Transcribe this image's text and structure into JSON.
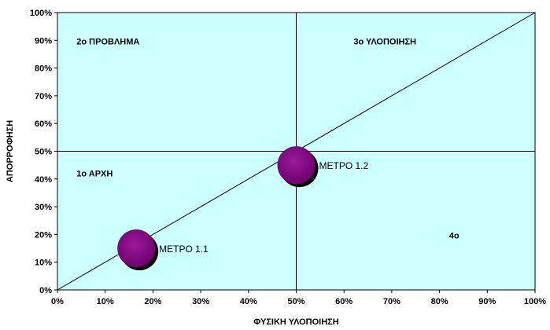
{
  "chart_data": {
    "type": "scatter",
    "subtype": "bubble",
    "title": "",
    "xlabel": "ΦΥΣΙΚΗ ΥΛΟΠΟΙΗΣΗ",
    "ylabel": "ΑΠΟΡΡΟΦΗΣΗ",
    "xlim": [
      0,
      1
    ],
    "ylim": [
      0,
      1
    ],
    "x_ticks": [
      0,
      0.1,
      0.2,
      0.3,
      0.4,
      0.5,
      0.6,
      0.7,
      0.8,
      0.9,
      1.0
    ],
    "x_tick_labels": [
      "0%",
      "10%",
      "20%",
      "30%",
      "40%",
      "50%",
      "60%",
      "70%",
      "80%",
      "90%",
      "100%"
    ],
    "y_ticks": [
      0,
      0.1,
      0.2,
      0.3,
      0.4,
      0.5,
      0.6,
      0.7,
      0.8,
      0.9,
      1.0
    ],
    "y_tick_labels": [
      "0%",
      "10%",
      "20%",
      "30%",
      "40%",
      "50%",
      "60%",
      "70%",
      "80%",
      "90%",
      "100%"
    ],
    "grid": false,
    "background_color": "#ccffff",
    "bubble_color": "#800080",
    "bubble_shadow_color": "#000000",
    "reference_lines": {
      "vertical_x": 0.5,
      "horizontal_y": 0.5,
      "diagonal": [
        [
          0,
          0
        ],
        [
          1,
          1
        ]
      ]
    },
    "points": [
      {
        "label": "ΜΕΤΡΟ 1.1",
        "x": 0.165,
        "y": 0.15
      },
      {
        "label": "ΜΕΤΡΟ 1.2",
        "x": 0.5,
        "y": 0.45
      }
    ],
    "quadrant_labels": [
      {
        "text": "1ο ΑΡΧΗ",
        "x": 0.04,
        "y": 0.41
      },
      {
        "text": "2ο ΠΡΟΒΛΗΜΑ",
        "x": 0.04,
        "y": 0.885
      },
      {
        "text": "3ο ΥΛΟΠΟΙΗΣΗ",
        "x": 0.62,
        "y": 0.885
      },
      {
        "text": "4ο",
        "x": 0.82,
        "y": 0.185
      }
    ]
  }
}
